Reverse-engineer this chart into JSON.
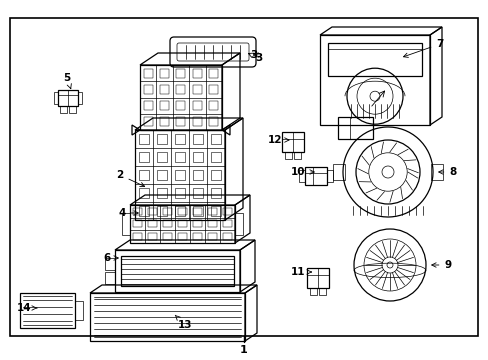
{
  "background_color": "#ffffff",
  "border_color": "#000000",
  "line_color": "#000000",
  "figsize": [
    4.89,
    3.6
  ],
  "dpi": 100
}
